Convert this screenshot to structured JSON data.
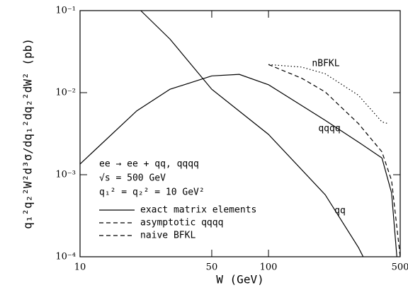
{
  "chart_data": {
    "type": "line",
    "xlabel": "W (GeV)",
    "ylabel": "q₁²q₂²W²d³σ/dq₁²dq₂²dW² (pb)",
    "xlog": true,
    "ylog": true,
    "xlim": [
      10,
      500
    ],
    "ylim": [
      0.0001,
      0.1
    ],
    "xticks": [
      10,
      50,
      100,
      500
    ],
    "yticks": [
      {
        "value": 0.0001,
        "label": "10⁻⁴"
      },
      {
        "value": 0.001,
        "label": "10⁻³"
      },
      {
        "value": 0.01,
        "label": "10⁻²"
      },
      {
        "value": 0.1,
        "label": "10⁻¹"
      }
    ],
    "annotations": [
      "ee → ee + qq, qqqq",
      "√s = 500 GeV",
      "q₁² = q₂² = 10 GeV²"
    ],
    "legend": [
      {
        "label": "exact matrix elements",
        "dash": "solid"
      },
      {
        "label": "asymptotic qqqq",
        "dash": "dashed"
      },
      {
        "label": "naive BFKL",
        "dash": "dashed"
      }
    ],
    "series": [
      {
        "name": "qq",
        "color": "#000000",
        "dash": "solid",
        "x": [
          21,
          30,
          50,
          100,
          200,
          300,
          318
        ],
        "values": [
          0.1,
          0.045,
          0.011,
          0.0031,
          0.00057,
          0.00013,
          0.0001
        ]
      },
      {
        "name": "qqqq",
        "color": "#000000",
        "dash": "solid",
        "x": [
          10,
          20,
          30,
          50,
          70,
          100,
          200,
          300,
          400,
          450,
          480
        ],
        "values": [
          0.00135,
          0.006,
          0.011,
          0.016,
          0.0167,
          0.0125,
          0.0046,
          0.0025,
          0.0016,
          0.0006,
          0.0001
        ]
      },
      {
        "name": null,
        "color": "#000000",
        "dash": "dashed",
        "x": [
          100,
          150,
          200,
          300,
          400,
          450,
          500
        ],
        "values": [
          0.022,
          0.015,
          0.0102,
          0.0042,
          0.0019,
          0.00085,
          0.0001
        ]
      },
      {
        "name": "nBFKL",
        "color": "#000000",
        "dash": "dotted",
        "x": [
          100,
          150,
          200,
          300,
          400,
          430
        ],
        "values": [
          0.022,
          0.0205,
          0.017,
          0.0093,
          0.0044,
          0.0042
        ]
      }
    ]
  }
}
